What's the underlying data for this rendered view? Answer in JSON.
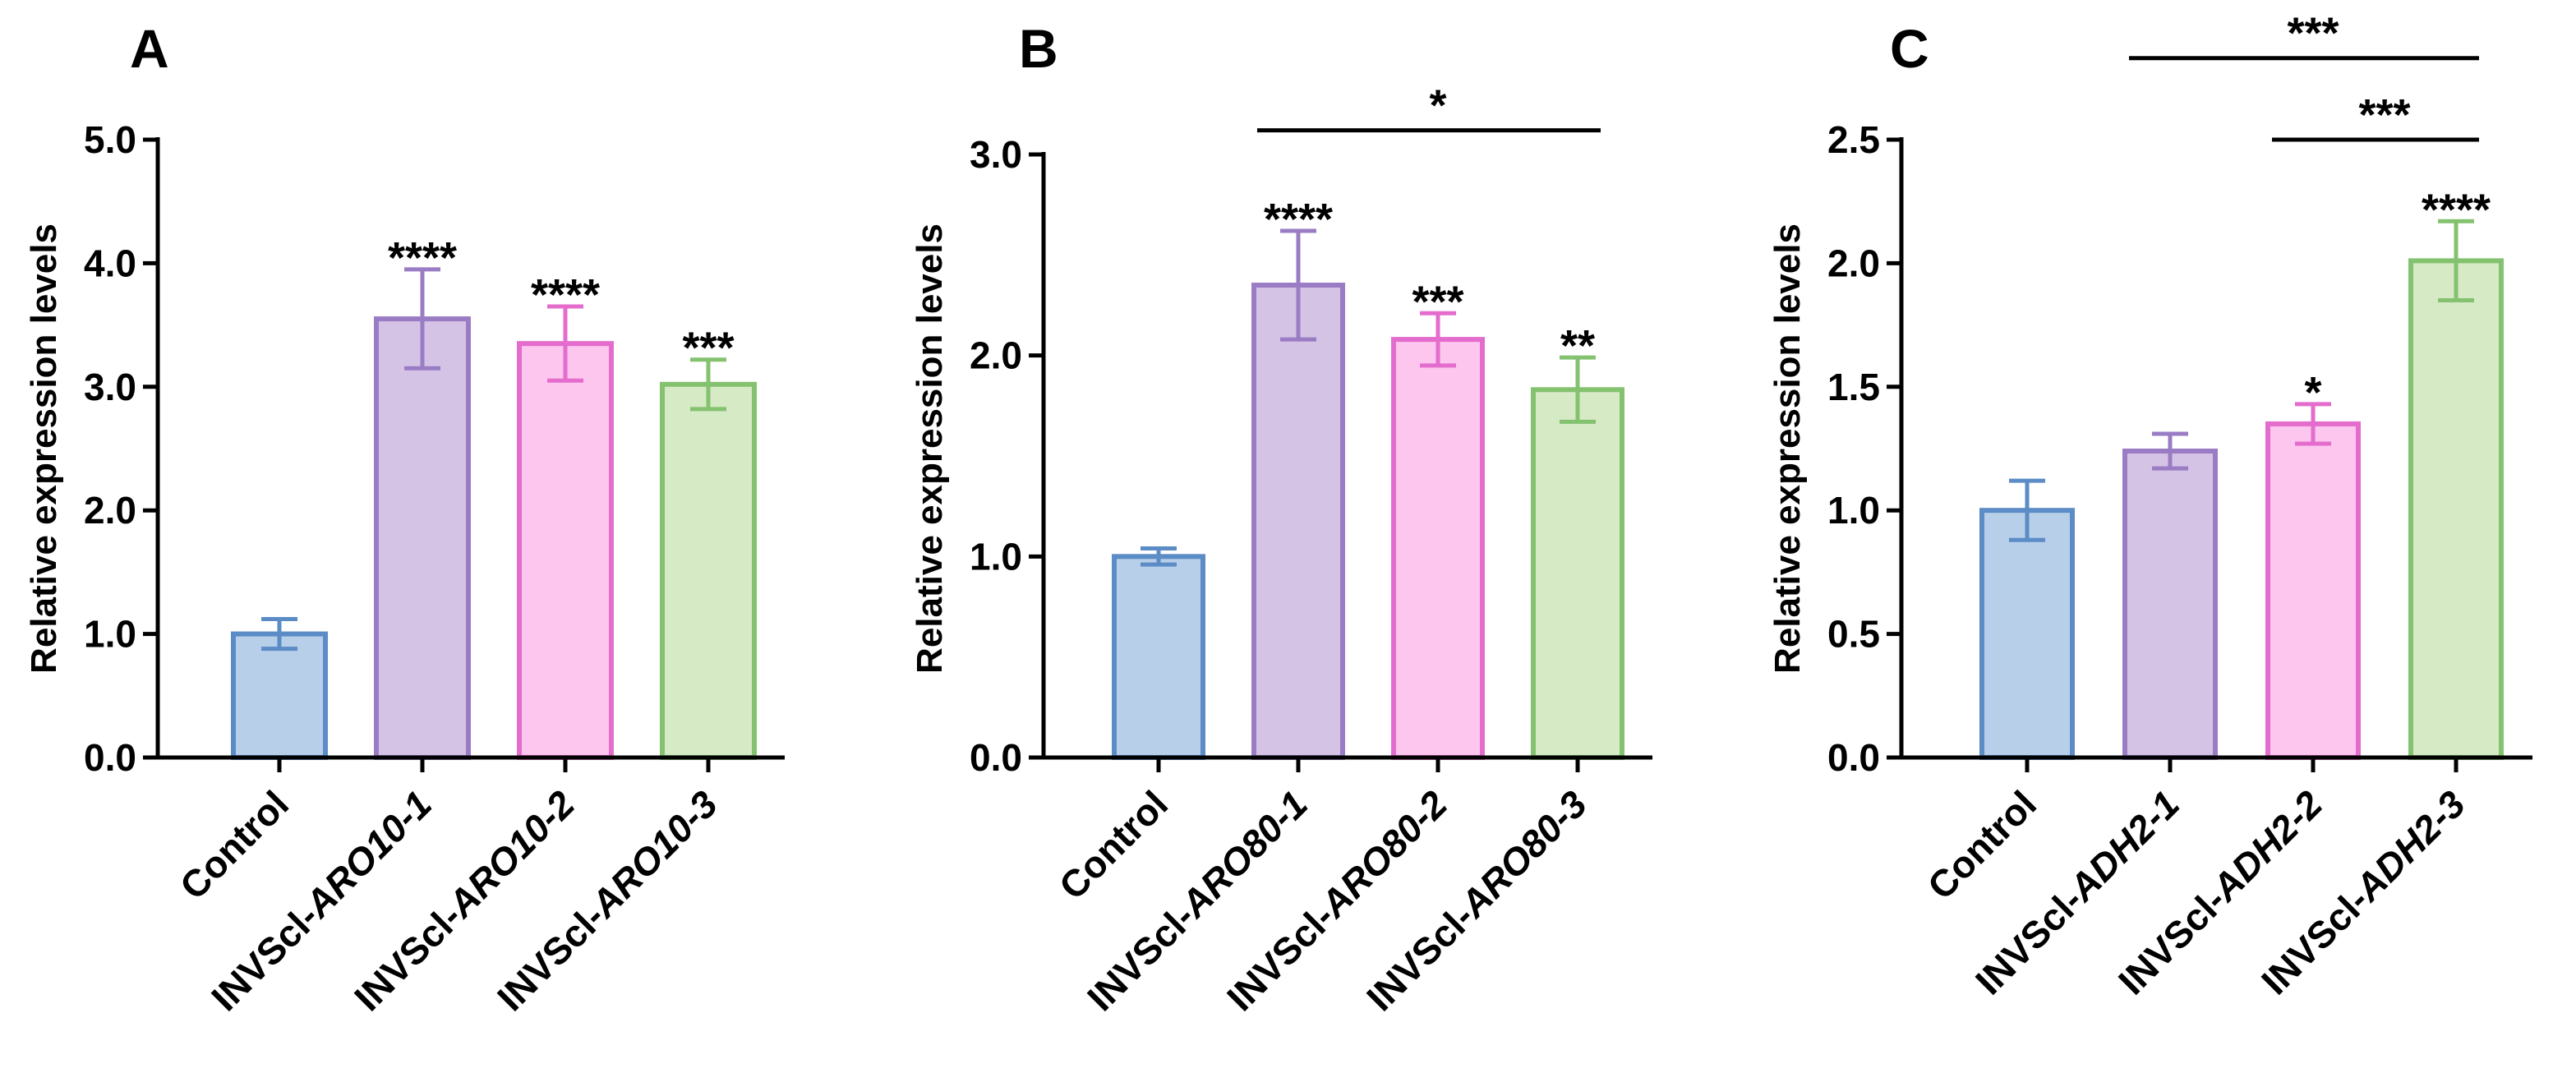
{
  "colors": {
    "fills": [
      "#b8cfea",
      "#d5c3e6",
      "#fcc6ef",
      "#d6eac6"
    ],
    "strokes": [
      "#5b8cc5",
      "#9a7cc4",
      "#e46ccd",
      "#84c26f"
    ],
    "axis": "#000000"
  },
  "chart_data": [
    {
      "panel": "A",
      "type": "bar",
      "ylabel": "Relative expression levels",
      "ylim": [
        0,
        5
      ],
      "yticks": [
        "0.0",
        "1.0",
        "2.0",
        "3.0",
        "4.0",
        "5.0"
      ],
      "categories": [
        {
          "prefix": "Control",
          "gene": ""
        },
        {
          "prefix": "INVScl-",
          "gene": "ARO10-1"
        },
        {
          "prefix": "INVScl-",
          "gene": "ARO10-2"
        },
        {
          "prefix": "INVScl-",
          "gene": "ARO10-3"
        }
      ],
      "values": [
        1.0,
        3.55,
        3.35,
        3.02
      ],
      "errors": [
        0.12,
        0.4,
        0.3,
        0.2
      ],
      "stars": [
        "",
        "****",
        "****",
        "***"
      ],
      "comparisons": []
    },
    {
      "panel": "B",
      "type": "bar",
      "ylabel": "Relative expression levels",
      "ylim": [
        0,
        3
      ],
      "yticks": [
        "0.0",
        "1.0",
        "2.0",
        "3.0"
      ],
      "categories": [
        {
          "prefix": "Control",
          "gene": ""
        },
        {
          "prefix": "INVScl-",
          "gene": "ARO80-1"
        },
        {
          "prefix": "INVScl-",
          "gene": "ARO80-2"
        },
        {
          "prefix": "INVScl-",
          "gene": "ARO80-3"
        }
      ],
      "values": [
        1.0,
        2.35,
        2.08,
        1.83
      ],
      "errors": [
        0.04,
        0.27,
        0.13,
        0.16
      ],
      "stars": [
        "",
        "****",
        "***",
        "**"
      ],
      "comparisons": [
        {
          "from": 1,
          "to": 3,
          "label": "*",
          "level": 3.12
        }
      ]
    },
    {
      "panel": "C",
      "type": "bar",
      "ylabel": "Relative expression levels",
      "ylim": [
        0,
        2.5
      ],
      "yticks": [
        "0.0",
        "0.5",
        "1.0",
        "1.5",
        "2.0",
        "2.5"
      ],
      "categories": [
        {
          "prefix": "Control",
          "gene": ""
        },
        {
          "prefix": "INVScl-",
          "gene": "ADH2-1"
        },
        {
          "prefix": "INVScl-",
          "gene": "ADH2-2"
        },
        {
          "prefix": "INVScl-",
          "gene": "ADH2-3"
        }
      ],
      "values": [
        1.0,
        1.24,
        1.35,
        2.01
      ],
      "errors": [
        0.12,
        0.07,
        0.08,
        0.16
      ],
      "stars": [
        "",
        "",
        "*",
        "****"
      ],
      "comparisons": [
        {
          "from": 1,
          "to": 3,
          "label": "***",
          "level": 2.83
        },
        {
          "from": 2,
          "to": 3,
          "label": "***",
          "level": 2.5
        }
      ]
    }
  ]
}
